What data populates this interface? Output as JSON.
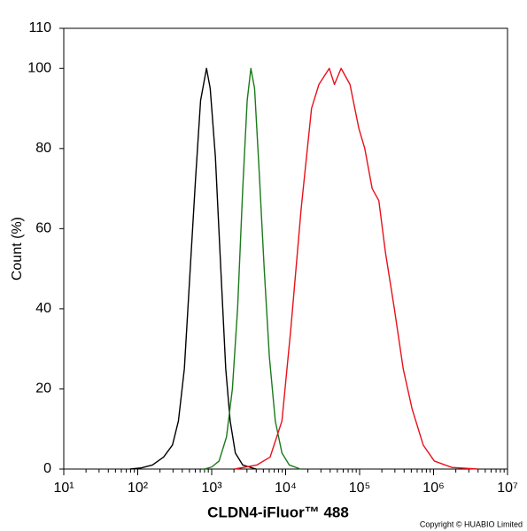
{
  "chart_data": {
    "type": "line",
    "x_label": "CLDN4-iFluor™ 488",
    "y_label": "Count  (%)",
    "copyright": "Copyright © HUABIO Limited",
    "log_x": true,
    "xlim": [
      10,
      10000000
    ],
    "ylim": [
      0,
      110
    ],
    "xticks": [
      {
        "value": 10,
        "label": "10¹"
      },
      {
        "value": 100,
        "label": "10²"
      },
      {
        "value": 1000,
        "label": "10³"
      },
      {
        "value": 10000,
        "label": "10⁴"
      },
      {
        "value": 100000,
        "label": "10⁵"
      },
      {
        "value": 1000000,
        "label": "10⁶"
      },
      {
        "value": 10000000,
        "label": "10⁷"
      }
    ],
    "yticks": [
      0,
      20,
      40,
      60,
      80,
      100,
      110
    ],
    "series": [
      {
        "color": "#000000",
        "x": [
          79,
          112,
          158,
          224,
          295,
          355,
          427,
          513,
          603,
          708,
          851,
          955,
          1122,
          1288,
          1549,
          1778,
          2089,
          2630,
          3981
        ],
        "values": [
          0,
          0.3,
          1,
          3,
          6,
          12,
          25,
          50,
          72,
          92,
          100,
          95,
          78,
          55,
          25,
          12,
          4,
          1,
          0
        ]
      },
      {
        "color": "#1a7a1a",
        "x": [
          794,
          1000,
          1259,
          1585,
          1905,
          2239,
          2630,
          3020,
          3388,
          3802,
          4365,
          5129,
          6026,
          7244,
          8913,
          11220,
          15849
        ],
        "values": [
          0,
          0.5,
          2,
          8,
          20,
          40,
          70,
          92,
          100,
          95,
          75,
          50,
          28,
          12,
          4,
          1,
          0
        ]
      },
      {
        "color": "#e8101a",
        "x": [
          2042,
          4074,
          6166,
          8913,
          11749,
          16218,
          22387,
          28184,
          38905,
          45709,
          56234,
          74131,
          97724,
          117490,
          147911,
          181970,
          223872,
          295121,
          389045,
          512861,
          724436,
          1023293,
          1778279,
          3981072
        ],
        "values": [
          0,
          1,
          3,
          12,
          35,
          65,
          90,
          96,
          100,
          96,
          100,
          96,
          85,
          80,
          70,
          67,
          54,
          40,
          25,
          15,
          6,
          2,
          0.4,
          0
        ]
      }
    ]
  }
}
